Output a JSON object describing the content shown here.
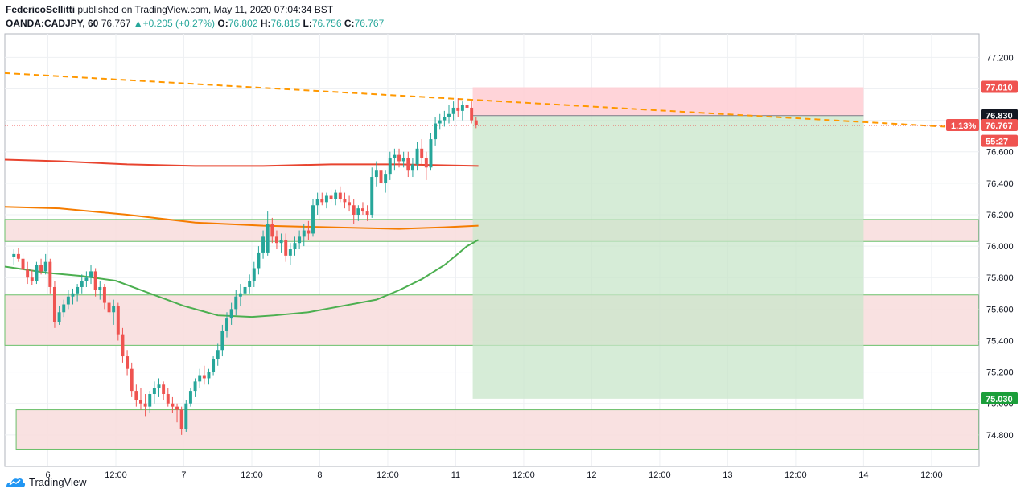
{
  "header": {
    "author": "FedericoSellitti",
    "published_text": "published on TradingView.com, May 11, 2020 07:04:34 BST",
    "symbol": "OANDA:CADJPY, 60",
    "last": "76.767",
    "change": "+0.205 (+0.27%)",
    "o_label": "O:",
    "o_value": "76.802",
    "h_label": "H:",
    "h_value": "76.815",
    "l_label": "L:",
    "l_value": "76.756",
    "c_label": "C:",
    "c_value": "76.767"
  },
  "footer": {
    "brand": "TradingView",
    "icon": "tradingview-logo-icon"
  },
  "colors": {
    "up": "#26a69a",
    "down": "#ef5350",
    "grid": "#eef0f3",
    "ema_red": "#e8442f",
    "ema_orange": "#f57c00",
    "ema_green": "#4caf50",
    "trend_dashed": "#ff9800",
    "zone_fill": "#f8dede",
    "zone_border": "#6abf69",
    "stop_fill": "#ffcdd2",
    "target_fill": "#c8e6c9"
  },
  "chart_data": {
    "type": "candlestick",
    "y_ticks": [
      "74.800",
      "75.000",
      "75.200",
      "75.400",
      "75.600",
      "75.800",
      "76.000",
      "76.200",
      "76.400",
      "76.600",
      "76.800",
      "77.000",
      "77.200"
    ],
    "ylim": [
      74.6,
      77.35
    ],
    "x_ticks": [
      "6",
      "12:00",
      "7",
      "12:00",
      "8",
      "12:00",
      "11",
      "12:00",
      "12",
      "12:00",
      "13",
      "12:00",
      "14",
      "12:00"
    ],
    "x_tick_pos": [
      3,
      9,
      15,
      21,
      27,
      33,
      39,
      45,
      51,
      57,
      63,
      69,
      75,
      81
    ],
    "x_range": [
      -0.8,
      85.2
    ],
    "candles": [
      [
        0.0,
        75.93,
        75.98,
        75.88,
        75.95
      ],
      [
        0.4,
        75.95,
        75.99,
        75.9,
        75.92
      ],
      [
        0.8,
        75.92,
        75.96,
        75.82,
        75.85
      ],
      [
        1.2,
        75.85,
        75.9,
        75.76,
        75.8
      ],
      [
        1.6,
        75.8,
        75.85,
        75.75,
        75.78
      ],
      [
        2.0,
        75.78,
        75.9,
        75.76,
        75.88
      ],
      [
        2.4,
        75.88,
        75.92,
        75.82,
        75.84
      ],
      [
        2.8,
        75.84,
        75.95,
        75.82,
        75.9
      ],
      [
        3.2,
        75.9,
        75.92,
        75.7,
        75.74
      ],
      [
        3.6,
        75.74,
        75.78,
        75.48,
        75.52
      ],
      [
        4.0,
        75.52,
        75.62,
        75.5,
        75.58
      ],
      [
        4.4,
        75.58,
        75.66,
        75.55,
        75.63
      ],
      [
        4.8,
        75.63,
        75.72,
        75.6,
        75.68
      ],
      [
        5.2,
        75.68,
        75.73,
        75.63,
        75.7
      ],
      [
        5.6,
        75.7,
        75.76,
        75.65,
        75.74
      ],
      [
        6.0,
        75.74,
        75.82,
        75.7,
        75.78
      ],
      [
        6.4,
        75.78,
        75.84,
        75.74,
        75.8
      ],
      [
        6.8,
        75.8,
        75.88,
        75.76,
        75.84
      ],
      [
        7.2,
        75.84,
        75.86,
        75.68,
        75.72
      ],
      [
        7.6,
        75.72,
        75.78,
        75.66,
        75.74
      ],
      [
        8.0,
        75.74,
        75.76,
        75.6,
        75.64
      ],
      [
        8.4,
        75.64,
        75.7,
        75.56,
        75.58
      ],
      [
        8.8,
        75.58,
        75.66,
        75.5,
        75.62
      ],
      [
        9.2,
        75.62,
        75.64,
        75.4,
        75.44
      ],
      [
        9.6,
        75.44,
        75.48,
        75.26,
        75.3
      ],
      [
        10.0,
        75.3,
        75.34,
        75.18,
        75.22
      ],
      [
        10.4,
        75.22,
        75.26,
        75.04,
        75.08
      ],
      [
        10.8,
        75.08,
        75.12,
        74.98,
        75.02
      ],
      [
        11.2,
        75.02,
        75.1,
        74.96,
        75.0
      ],
      [
        11.6,
        75.0,
        75.06,
        74.92,
        74.98
      ],
      [
        12.0,
        74.98,
        75.08,
        74.94,
        75.06
      ],
      [
        12.4,
        75.06,
        75.14,
        75.0,
        75.1
      ],
      [
        12.8,
        75.1,
        75.16,
        75.04,
        75.12
      ],
      [
        13.2,
        75.12,
        75.14,
        75.02,
        75.06
      ],
      [
        13.6,
        75.06,
        75.1,
        74.98,
        75.0
      ],
      [
        14.0,
        75.0,
        75.04,
        74.94,
        74.98
      ],
      [
        14.4,
        74.98,
        75.0,
        74.88,
        74.96
      ],
      [
        14.8,
        74.96,
        74.98,
        74.8,
        74.84
      ],
      [
        15.2,
        74.84,
        75.02,
        74.82,
        75.0
      ],
      [
        15.6,
        75.0,
        75.1,
        74.98,
        75.08
      ],
      [
        16.0,
        75.08,
        75.16,
        75.04,
        75.14
      ],
      [
        16.4,
        75.14,
        75.22,
        75.1,
        75.18
      ],
      [
        16.8,
        75.18,
        75.24,
        75.12,
        75.16
      ],
      [
        17.2,
        75.16,
        75.22,
        75.12,
        75.2
      ],
      [
        17.6,
        75.2,
        75.3,
        75.18,
        75.28
      ],
      [
        18.0,
        75.28,
        75.38,
        75.24,
        75.34
      ],
      [
        18.4,
        75.34,
        75.5,
        75.3,
        75.46
      ],
      [
        18.8,
        75.46,
        75.58,
        75.42,
        75.54
      ],
      [
        19.2,
        75.54,
        75.64,
        75.5,
        75.6
      ],
      [
        19.6,
        75.6,
        75.72,
        75.56,
        75.68
      ],
      [
        20.0,
        75.68,
        75.76,
        75.62,
        75.7
      ],
      [
        20.4,
        75.7,
        75.78,
        75.66,
        75.74
      ],
      [
        20.8,
        75.74,
        75.82,
        75.7,
        75.78
      ],
      [
        21.2,
        75.78,
        75.9,
        75.74,
        75.86
      ],
      [
        21.6,
        75.86,
        76.0,
        75.82,
        75.96
      ],
      [
        22.0,
        75.96,
        76.1,
        75.92,
        76.06
      ],
      [
        22.4,
        75.96,
        76.22,
        75.94,
        76.14
      ],
      [
        22.8,
        76.14,
        76.18,
        76.02,
        76.06
      ],
      [
        23.2,
        76.06,
        76.1,
        75.98,
        76.02
      ],
      [
        23.6,
        76.02,
        76.08,
        75.96,
        76.04
      ],
      [
        24.0,
        76.04,
        76.08,
        75.9,
        75.94
      ],
      [
        24.4,
        75.94,
        76.02,
        75.88,
        75.98
      ],
      [
        24.8,
        75.98,
        76.06,
        75.94,
        76.02
      ],
      [
        25.2,
        76.02,
        76.1,
        75.98,
        76.06
      ],
      [
        25.6,
        76.06,
        76.14,
        76.0,
        76.1
      ],
      [
        26.0,
        76.1,
        76.16,
        76.04,
        76.08
      ],
      [
        26.4,
        76.08,
        76.3,
        76.06,
        76.26
      ],
      [
        26.8,
        76.26,
        76.34,
        76.2,
        76.3
      ],
      [
        27.2,
        76.3,
        76.34,
        76.26,
        76.28
      ],
      [
        27.6,
        76.28,
        76.34,
        76.24,
        76.32
      ],
      [
        28.0,
        76.32,
        76.36,
        76.28,
        76.3
      ],
      [
        28.4,
        76.3,
        76.36,
        76.26,
        76.34
      ],
      [
        28.8,
        76.34,
        76.38,
        76.28,
        76.3
      ],
      [
        29.2,
        76.3,
        76.34,
        76.24,
        76.28
      ],
      [
        29.6,
        76.28,
        76.32,
        76.22,
        76.26
      ],
      [
        30.0,
        76.26,
        76.3,
        76.14,
        76.2
      ],
      [
        30.4,
        76.2,
        76.26,
        76.16,
        76.24
      ],
      [
        30.8,
        76.24,
        76.28,
        76.2,
        76.22
      ],
      [
        31.2,
        76.22,
        76.26,
        76.16,
        76.2
      ],
      [
        31.6,
        76.2,
        76.5,
        76.18,
        76.44
      ],
      [
        32.0,
        76.44,
        76.54,
        76.38,
        76.48
      ],
      [
        32.4,
        76.48,
        76.54,
        76.36,
        76.4
      ],
      [
        32.8,
        76.4,
        76.48,
        76.34,
        76.46
      ],
      [
        33.2,
        76.46,
        76.6,
        76.42,
        76.56
      ],
      [
        33.6,
        76.56,
        76.62,
        76.48,
        76.58
      ],
      [
        34.0,
        76.58,
        76.62,
        76.5,
        76.54
      ],
      [
        34.4,
        76.54,
        76.6,
        76.5,
        76.56
      ],
      [
        34.8,
        76.56,
        76.6,
        76.44,
        76.48
      ],
      [
        35.2,
        76.48,
        76.56,
        76.44,
        76.52
      ],
      [
        35.6,
        76.52,
        76.66,
        76.48,
        76.62
      ],
      [
        36.0,
        76.62,
        76.68,
        76.52,
        76.56
      ],
      [
        36.4,
        76.56,
        76.6,
        76.42,
        76.5
      ],
      [
        36.8,
        76.5,
        76.72,
        76.48,
        76.68
      ],
      [
        37.2,
        76.68,
        76.82,
        76.64,
        76.78
      ],
      [
        37.6,
        76.78,
        76.84,
        76.74,
        76.8
      ],
      [
        38.0,
        76.8,
        76.86,
        76.76,
        76.82
      ],
      [
        38.4,
        76.82,
        76.9,
        76.78,
        76.84
      ],
      [
        38.8,
        76.84,
        76.92,
        76.8,
        76.88
      ],
      [
        39.2,
        76.88,
        76.94,
        76.82,
        76.86
      ],
      [
        39.6,
        76.86,
        76.92,
        76.8,
        76.9
      ],
      [
        40.0,
        76.9,
        76.94,
        76.84,
        76.88
      ],
      [
        40.4,
        76.88,
        76.92,
        76.78,
        76.8
      ],
      [
        40.8,
        76.8,
        76.82,
        76.75,
        76.77
      ]
    ],
    "ema_red": [
      [
        -0.8,
        76.55
      ],
      [
        4,
        76.54
      ],
      [
        10,
        76.52
      ],
      [
        16,
        76.51
      ],
      [
        22,
        76.51
      ],
      [
        28,
        76.52
      ],
      [
        34,
        76.52
      ],
      [
        41,
        76.51
      ]
    ],
    "ema_orange": [
      [
        -0.8,
        76.25
      ],
      [
        4,
        76.24
      ],
      [
        10,
        76.2
      ],
      [
        16,
        76.15
      ],
      [
        22,
        76.13
      ],
      [
        28,
        76.12
      ],
      [
        34,
        76.11
      ],
      [
        38,
        76.12
      ],
      [
        41,
        76.13
      ]
    ],
    "ema_green": [
      [
        -0.8,
        75.87
      ],
      [
        3,
        75.83
      ],
      [
        6,
        75.81
      ],
      [
        9,
        75.78
      ],
      [
        12,
        75.7
      ],
      [
        15,
        75.62
      ],
      [
        18,
        75.56
      ],
      [
        21,
        75.55
      ],
      [
        23,
        75.56
      ],
      [
        26,
        75.58
      ],
      [
        29,
        75.62
      ],
      [
        32,
        75.66
      ],
      [
        34,
        75.72
      ],
      [
        36,
        75.79
      ],
      [
        38,
        75.88
      ],
      [
        40,
        76.0
      ],
      [
        41,
        76.04
      ]
    ],
    "trend_line": {
      "from": [
        -0.8,
        77.1
      ],
      "to": [
        84.5,
        76.75
      ]
    },
    "current_price_line": 76.767,
    "zones": [
      {
        "x": [
          -0.8,
          85.2
        ],
        "y": [
          76.03,
          76.17
        ]
      },
      {
        "x": [
          -0.8,
          85.2
        ],
        "y": [
          75.37,
          75.69
        ]
      },
      {
        "x": [
          0.2,
          85.2
        ],
        "y": [
          74.71,
          74.96
        ]
      }
    ],
    "position": {
      "type": "short",
      "x": [
        40.5,
        75.0
      ],
      "entry": 76.83,
      "stop": 77.01,
      "target": 75.03
    },
    "price_labels": [
      {
        "text": "77.010",
        "value": 77.01,
        "bg": "#ef5350",
        "fg": "#ffffff"
      },
      {
        "text": "76.830",
        "value": 76.83,
        "bg": "#131722",
        "fg": "#ffffff"
      },
      {
        "text": "76.767",
        "value": 76.767,
        "bg": "#ef5350",
        "fg": "#ffffff"
      },
      {
        "text": "55:27",
        "value": 76.667,
        "bg": "#ef5350",
        "fg": "#ffffff"
      },
      {
        "text": "75.030",
        "value": 75.03,
        "bg": "#1b9e3a",
        "fg": "#ffffff"
      }
    ],
    "percent_label": "1.13%"
  }
}
